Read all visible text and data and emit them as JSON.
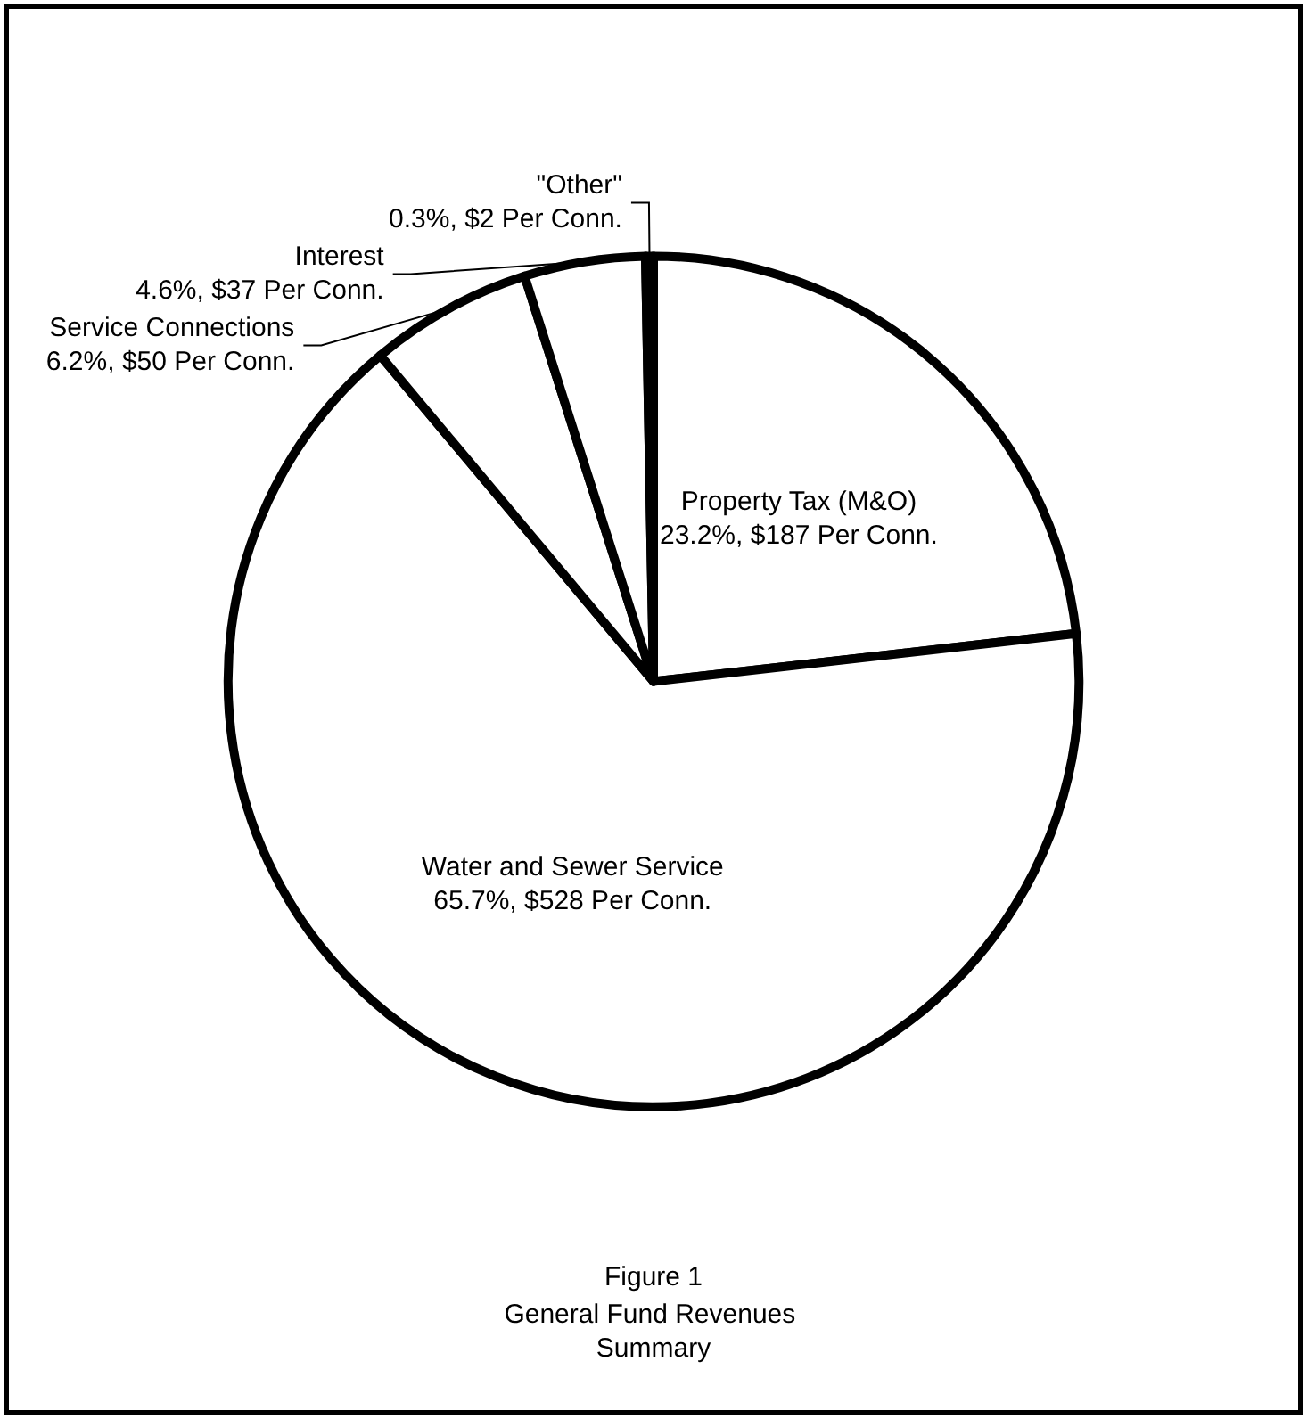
{
  "chart_data": {
    "type": "pie",
    "title": "Figure 1",
    "subtitle": "General Fund Revenues Summary",
    "categories": [
      "Property Tax (M&O)",
      "Water and Sewer Service",
      "Service Connections",
      "Interest",
      "\"Other\""
    ],
    "values": [
      23.2,
      65.7,
      6.2,
      4.6,
      0.3
    ],
    "colors": [
      "#ffffff",
      "#ffffff",
      "#ffffff",
      "#ffffff",
      "#ffffff"
    ],
    "value_labels": [
      "23.2%, $187 Per Conn.",
      "65.7%, $528 Per Conn.",
      "6.2%, $50 Per Conn.",
      "4.6%, $37 Per Conn.",
      "0.3%, $2 Per Conn."
    ],
    "legend": false
  }
}
